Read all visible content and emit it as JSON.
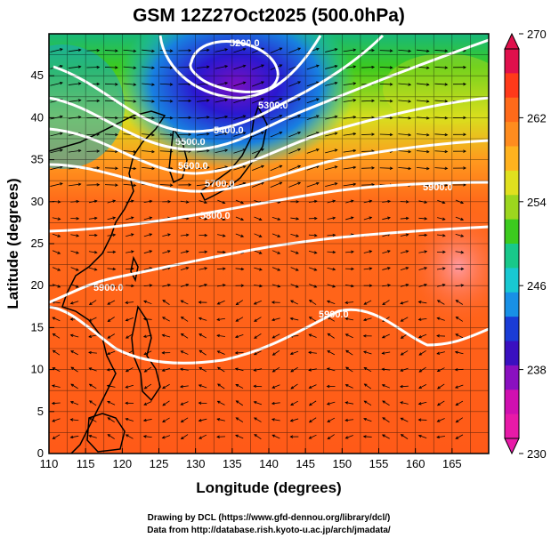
{
  "title": "GSM 12Z27Oct2025 (500.0hPa)",
  "axes": {
    "xlabel": "Longitude (degrees)",
    "ylabel": "Latitude  (degrees)",
    "xlim": [
      110,
      170
    ],
    "ylim": [
      0,
      50
    ],
    "xticks": [
      "110",
      "115",
      "120",
      "125",
      "130",
      "135",
      "140",
      "145",
      "150",
      "155",
      "160",
      "165"
    ],
    "yticks": [
      "0",
      "5",
      "10",
      "15",
      "20",
      "25",
      "30",
      "35",
      "40",
      "45"
    ]
  },
  "colorbar": {
    "range": [
      230,
      270
    ],
    "labels": [
      "270",
      "262",
      "254",
      "246",
      "238",
      "230"
    ],
    "colors": [
      "#e0104c",
      "#ff3a1a",
      "#ff6a1a",
      "#ff8c1e",
      "#ffb21e",
      "#e0e01e",
      "#9cd61e",
      "#3ccb1e",
      "#18c88a",
      "#18c8d2",
      "#1890e6",
      "#1a3cd6",
      "#3a10c0",
      "#8a10c0",
      "#d010b0",
      "#e81aa8"
    ]
  },
  "contours": [
    {
      "label": "5200.0"
    },
    {
      "label": "5300.0"
    },
    {
      "label": "5400.0"
    },
    {
      "label": "5500.0"
    },
    {
      "label": "5600.0"
    },
    {
      "label": "5700.0"
    },
    {
      "label": "5800.0"
    },
    {
      "label": "5900.0"
    },
    {
      "label": "5900.0"
    },
    {
      "label": "5900.0"
    }
  ],
  "credits": {
    "line1": "Drawing by DCL (https://www.gfd-dennou.org/library/dcl/)",
    "line2": "Data from http://database.rish.kyoto-u.ac.jp/arch/jmadata/"
  }
}
